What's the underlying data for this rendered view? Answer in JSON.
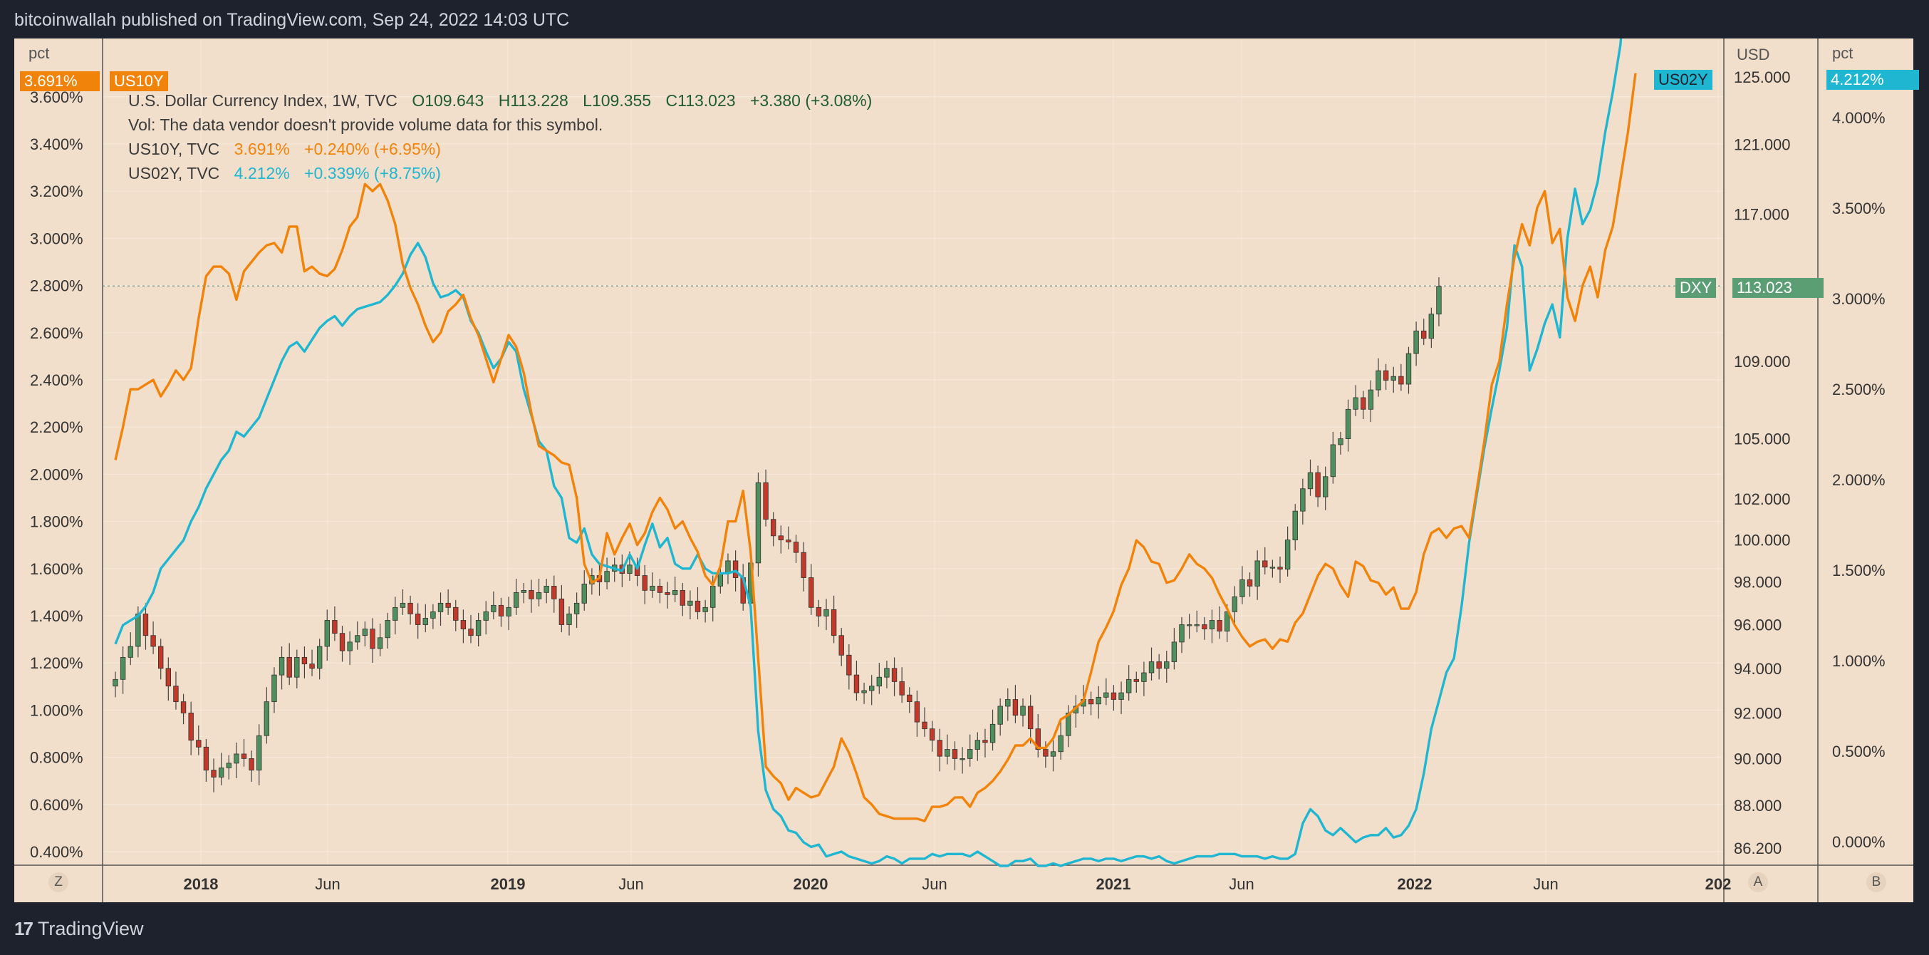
{
  "header": {
    "publisher": "bitcoinwallah published on TradingView.com, Sep 24, 2022 14:03 UTC"
  },
  "footer": {
    "brand": "TradingView",
    "logo_glyph": "17"
  },
  "legend": {
    "main": {
      "name": "U.S. Dollar Currency Index, 1W, TVC",
      "o": "O109.643",
      "h": "H113.228",
      "l": "L109.355",
      "c": "C113.023",
      "chg": "+3.380 (+3.08%)"
    },
    "vol_note": "Vol: The data vendor doesn't provide volume data for this symbol.",
    "us10y": {
      "name": "US10Y, TVC",
      "value": "3.691%",
      "chg": "+0.240% (+6.95%)"
    },
    "us02y": {
      "name": "US02Y, TVC",
      "value": "4.212%",
      "chg": "+0.339% (+8.75%)"
    }
  },
  "axes": {
    "left_unit": "pct",
    "right_unit_usd": "USD",
    "right_unit_pct": "pct",
    "left_ticks": [
      "3.600%",
      "3.400%",
      "3.200%",
      "3.000%",
      "2.800%",
      "2.600%",
      "2.400%",
      "2.200%",
      "2.000%",
      "1.800%",
      "1.600%",
      "1.400%",
      "1.200%",
      "1.000%",
      "0.800%",
      "0.600%",
      "0.400%"
    ],
    "usd_ticks": [
      "125.000",
      "121.000",
      "117.000",
      "109.000",
      "105.000",
      "102.000",
      "100.000",
      "98.000",
      "96.000",
      "94.000",
      "92.000",
      "90.000",
      "88.000",
      "86.200"
    ],
    "right_pct_ticks": [
      "4.000%",
      "3.500%",
      "3.000%",
      "2.500%",
      "2.000%",
      "1.500%",
      "1.000%",
      "0.500%",
      "0.000%"
    ],
    "x_ticks": [
      {
        "label": "2018",
        "bold": true
      },
      {
        "label": "Jun",
        "bold": false
      },
      {
        "label": "2019",
        "bold": true
      },
      {
        "label": "Jun",
        "bold": false
      },
      {
        "label": "2020",
        "bold": true
      },
      {
        "label": "Jun",
        "bold": false
      },
      {
        "label": "2021",
        "bold": true
      },
      {
        "label": "Jun",
        "bold": false
      },
      {
        "label": "2022",
        "bold": true
      },
      {
        "label": "Jun",
        "bold": false
      },
      {
        "label": "202",
        "bold": true
      }
    ],
    "buttons": {
      "z": "Z",
      "a": "A",
      "b": "B"
    }
  },
  "tags": {
    "us10y_left": "3.691%",
    "us10y_name": "US10Y",
    "us02y_name": "US02Y",
    "us02y_right": "4.212%",
    "dxy_name": "DXY",
    "dxy_value": "113.023"
  },
  "colors": {
    "background": "#f2dfcb",
    "us10y": "#f2830a",
    "us02y": "#1fb6d1",
    "candle_up": "#4e8f5d",
    "candle_down": "#c0392b",
    "dxy_tag": "#5b9e73"
  },
  "chart_data": {
    "type": "line",
    "x_start": "2017-09-04",
    "x_end": "2022-09-19",
    "series": [
      {
        "name": "US10Y",
        "axis": "left_pct",
        "values": [
          2.06,
          2.2,
          2.36,
          2.36,
          2.38,
          2.4,
          2.33,
          2.38,
          2.44,
          2.4,
          2.45,
          2.66,
          2.84,
          2.88,
          2.88,
          2.85,
          2.74,
          2.86,
          2.9,
          2.94,
          2.97,
          2.98,
          2.94,
          3.05,
          3.05,
          2.86,
          2.88,
          2.85,
          2.84,
          2.87,
          2.95,
          3.05,
          3.09,
          3.23,
          3.2,
          3.23,
          3.16,
          3.06,
          2.89,
          2.79,
          2.72,
          2.63,
          2.56,
          2.6,
          2.69,
          2.72,
          2.76,
          2.66,
          2.59,
          2.49,
          2.39,
          2.49,
          2.59,
          2.54,
          2.43,
          2.26,
          2.12,
          2.1,
          2.08,
          2.05,
          2.04,
          1.9,
          1.62,
          1.54,
          1.56,
          1.75,
          1.66,
          1.73,
          1.79,
          1.7,
          1.75,
          1.84,
          1.9,
          1.85,
          1.77,
          1.8,
          1.73,
          1.67,
          1.57,
          1.53,
          1.61,
          1.8,
          1.8,
          1.93,
          1.67,
          1.22,
          0.76,
          0.72,
          0.69,
          0.62,
          0.67,
          0.65,
          0.63,
          0.64,
          0.7,
          0.76,
          0.88,
          0.82,
          0.73,
          0.63,
          0.6,
          0.56,
          0.55,
          0.54,
          0.54,
          0.54,
          0.54,
          0.53,
          0.59,
          0.59,
          0.6,
          0.63,
          0.63,
          0.59,
          0.65,
          0.67,
          0.7,
          0.74,
          0.79,
          0.85,
          0.85,
          0.88,
          0.84,
          0.84,
          0.88,
          0.96,
          0.98,
          1.01,
          1.04,
          1.16,
          1.29,
          1.35,
          1.42,
          1.53,
          1.6,
          1.72,
          1.69,
          1.63,
          1.62,
          1.54,
          1.55,
          1.6,
          1.66,
          1.62,
          1.6,
          1.56,
          1.49,
          1.43,
          1.36,
          1.31,
          1.27,
          1.29,
          1.3,
          1.26,
          1.3,
          1.29,
          1.37,
          1.41,
          1.49,
          1.57,
          1.62,
          1.6,
          1.53,
          1.48,
          1.63,
          1.61,
          1.55,
          1.54,
          1.49,
          1.52,
          1.43,
          1.43,
          1.5,
          1.66,
          1.75,
          1.77,
          1.73,
          1.77,
          1.78,
          1.73,
          1.93,
          2.14,
          2.38,
          2.48,
          2.72,
          2.92,
          3.06,
          2.97,
          3.13,
          3.2,
          2.98,
          3.04,
          2.75,
          2.65,
          2.8,
          2.88,
          2.75,
          2.95,
          3.05,
          3.25,
          3.45,
          3.7
        ]
      },
      {
        "name": "US02Y",
        "axis": "left_pct",
        "values": [
          1.28,
          1.36,
          1.38,
          1.4,
          1.44,
          1.5,
          1.6,
          1.64,
          1.68,
          1.72,
          1.8,
          1.86,
          1.94,
          2.0,
          2.06,
          2.1,
          2.18,
          2.16,
          2.2,
          2.24,
          2.32,
          2.4,
          2.48,
          2.54,
          2.56,
          2.52,
          2.57,
          2.62,
          2.65,
          2.67,
          2.63,
          2.67,
          2.7,
          2.71,
          2.72,
          2.73,
          2.76,
          2.8,
          2.85,
          2.93,
          2.98,
          2.92,
          2.81,
          2.75,
          2.76,
          2.78,
          2.75,
          2.65,
          2.6,
          2.52,
          2.45,
          2.49,
          2.56,
          2.52,
          2.36,
          2.25,
          2.14,
          2.1,
          1.95,
          1.9,
          1.73,
          1.71,
          1.77,
          1.66,
          1.62,
          1.61,
          1.6,
          1.59,
          1.66,
          1.6,
          1.7,
          1.79,
          1.69,
          1.73,
          1.62,
          1.6,
          1.6,
          1.66,
          1.6,
          1.58,
          1.58,
          1.58,
          1.59,
          1.56,
          1.44,
          0.91,
          0.66,
          0.58,
          0.55,
          0.49,
          0.48,
          0.44,
          0.42,
          0.43,
          0.38,
          0.39,
          0.4,
          0.38,
          0.37,
          0.36,
          0.35,
          0.36,
          0.38,
          0.37,
          0.35,
          0.37,
          0.37,
          0.37,
          0.39,
          0.38,
          0.39,
          0.39,
          0.39,
          0.38,
          0.4,
          0.38,
          0.36,
          0.34,
          0.34,
          0.36,
          0.36,
          0.37,
          0.34,
          0.34,
          0.35,
          0.34,
          0.35,
          0.36,
          0.37,
          0.37,
          0.36,
          0.37,
          0.37,
          0.36,
          0.37,
          0.38,
          0.38,
          0.37,
          0.38,
          0.36,
          0.35,
          0.36,
          0.37,
          0.38,
          0.38,
          0.38,
          0.39,
          0.39,
          0.39,
          0.38,
          0.38,
          0.38,
          0.37,
          0.38,
          0.37,
          0.37,
          0.39,
          0.52,
          0.58,
          0.55,
          0.49,
          0.47,
          0.5,
          0.47,
          0.44,
          0.46,
          0.47,
          0.47,
          0.5,
          0.46,
          0.47,
          0.51,
          0.58,
          0.73,
          0.92,
          1.04,
          1.16,
          1.22,
          1.44,
          1.71,
          1.91,
          2.11,
          2.28,
          2.44,
          2.62,
          2.97,
          2.88,
          2.44,
          2.53,
          2.64,
          2.72,
          2.58,
          3.0,
          3.21,
          3.06,
          3.12,
          3.24,
          3.45,
          3.62,
          3.82,
          4.21
        ]
      },
      {
        "name": "DXY",
        "axis": "usd",
        "type": "candlestick",
        "close": [
          93.5,
          94.5,
          95.0,
          96.5,
          95.5,
          95.0,
          94.0,
          93.2,
          92.5,
          92.0,
          90.8,
          90.5,
          89.5,
          89.2,
          89.6,
          89.8,
          90.2,
          90.0,
          89.5,
          91.0,
          92.5,
          93.7,
          94.5,
          93.6,
          94.5,
          94.2,
          94.0,
          95.0,
          96.2,
          95.6,
          94.8,
          95.2,
          95.5,
          95.8,
          94.9,
          95.4,
          96.2,
          96.8,
          97.0,
          96.5,
          96.0,
          96.3,
          96.6,
          97.0,
          96.8,
          96.2,
          95.8,
          95.5,
          96.2,
          96.6,
          96.9,
          96.4,
          96.8,
          97.5,
          97.6,
          97.2,
          97.5,
          97.8,
          97.2,
          96.0,
          96.5,
          97.0,
          97.9,
          98.3,
          98.0,
          98.5,
          98.8,
          98.4,
          98.8,
          98.3,
          97.6,
          97.8,
          97.5,
          97.4,
          97.6,
          96.9,
          97.1,
          96.6,
          96.8,
          97.8,
          98.4,
          99.0,
          98.2,
          97.0,
          98.9,
          102.8,
          101.0,
          100.2,
          100.0,
          99.9,
          99.4,
          98.2,
          96.8,
          96.4,
          96.7,
          95.5,
          94.6,
          93.7,
          92.9,
          93.0,
          93.2,
          93.6,
          94.0,
          93.4,
          92.8,
          92.5,
          91.6,
          91.3,
          90.8,
          90.1,
          90.4,
          90.0,
          90.0,
          90.4,
          90.8,
          90.7,
          91.5,
          92.3,
          92.6,
          91.9,
          92.3,
          91.3,
          90.4,
          90.1,
          90.3,
          91.0,
          92.0,
          92.3,
          92.6,
          92.4,
          92.7,
          92.9,
          92.6,
          92.9,
          93.5,
          93.4,
          93.8,
          94.3,
          94.0,
          94.3,
          95.2,
          96.0,
          96.0,
          96.0,
          95.8,
          96.2,
          95.7,
          96.6,
          97.3,
          98.1,
          97.8,
          99.0,
          98.7,
          98.7,
          98.6,
          100.0,
          101.4,
          102.5,
          103.3,
          102.1,
          103.1,
          104.7,
          105.0,
          106.5,
          107.1,
          106.5,
          107.5,
          108.5,
          108.0,
          108.2,
          107.8,
          109.4,
          110.6,
          110.2,
          111.5,
          113.0
        ]
      }
    ],
    "ylim_left": [
      0.4,
      3.7
    ],
    "ylim_right_usd": [
      86.2,
      125.0
    ],
    "ylim_right_pct": [
      0.0,
      4.21
    ],
    "grid": true,
    "last_values": {
      "US10Y": 3.691,
      "US02Y": 4.212,
      "DXY": 113.023
    }
  }
}
